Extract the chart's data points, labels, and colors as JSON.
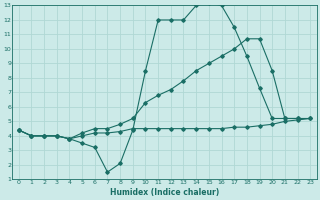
{
  "xlabel": "Humidex (Indice chaleur)",
  "bg_color": "#cceae8",
  "grid_color": "#b0d8d4",
  "line_color": "#1a6e65",
  "xlim": [
    -0.5,
    23.5
  ],
  "ylim": [
    1,
    13
  ],
  "xticks": [
    0,
    1,
    2,
    3,
    4,
    5,
    6,
    7,
    8,
    9,
    10,
    11,
    12,
    13,
    14,
    15,
    16,
    17,
    18,
    19,
    20,
    21,
    22,
    23
  ],
  "yticks": [
    1,
    2,
    3,
    4,
    5,
    6,
    7,
    8,
    9,
    10,
    11,
    12,
    13
  ],
  "line1_x": [
    0,
    1,
    2,
    3,
    4,
    5,
    6,
    7,
    8,
    9,
    10,
    11,
    12,
    13,
    14,
    15,
    16,
    17,
    18,
    19,
    20,
    21,
    22
  ],
  "line1_y": [
    4.4,
    4.0,
    4.0,
    4.0,
    3.8,
    3.5,
    3.2,
    1.5,
    2.1,
    4.4,
    8.5,
    12.0,
    12.0,
    12.0,
    13.0,
    13.2,
    13.0,
    11.5,
    9.5,
    7.3,
    5.2,
    5.2,
    5.2
  ],
  "line2_x": [
    0,
    1,
    2,
    3,
    4,
    5,
    6,
    7,
    8,
    9,
    10,
    11,
    12,
    13,
    14,
    15,
    16,
    17,
    18,
    19,
    20,
    21,
    22,
    23
  ],
  "line2_y": [
    4.4,
    4.0,
    4.0,
    4.0,
    3.8,
    4.2,
    4.5,
    4.5,
    4.8,
    5.2,
    6.3,
    6.8,
    7.2,
    7.8,
    8.5,
    9.0,
    9.5,
    10.0,
    10.7,
    10.7,
    8.5,
    5.2,
    5.2,
    5.2
  ],
  "line3_x": [
    0,
    1,
    2,
    3,
    4,
    5,
    6,
    7,
    8,
    9,
    10,
    11,
    12,
    13,
    14,
    15,
    16,
    17,
    18,
    19,
    20,
    21,
    22,
    23
  ],
  "line3_y": [
    4.4,
    4.0,
    4.0,
    4.0,
    3.8,
    4.0,
    4.2,
    4.2,
    4.3,
    4.5,
    4.5,
    4.5,
    4.5,
    4.5,
    4.5,
    4.5,
    4.5,
    4.6,
    4.6,
    4.7,
    4.8,
    5.0,
    5.1,
    5.2
  ]
}
